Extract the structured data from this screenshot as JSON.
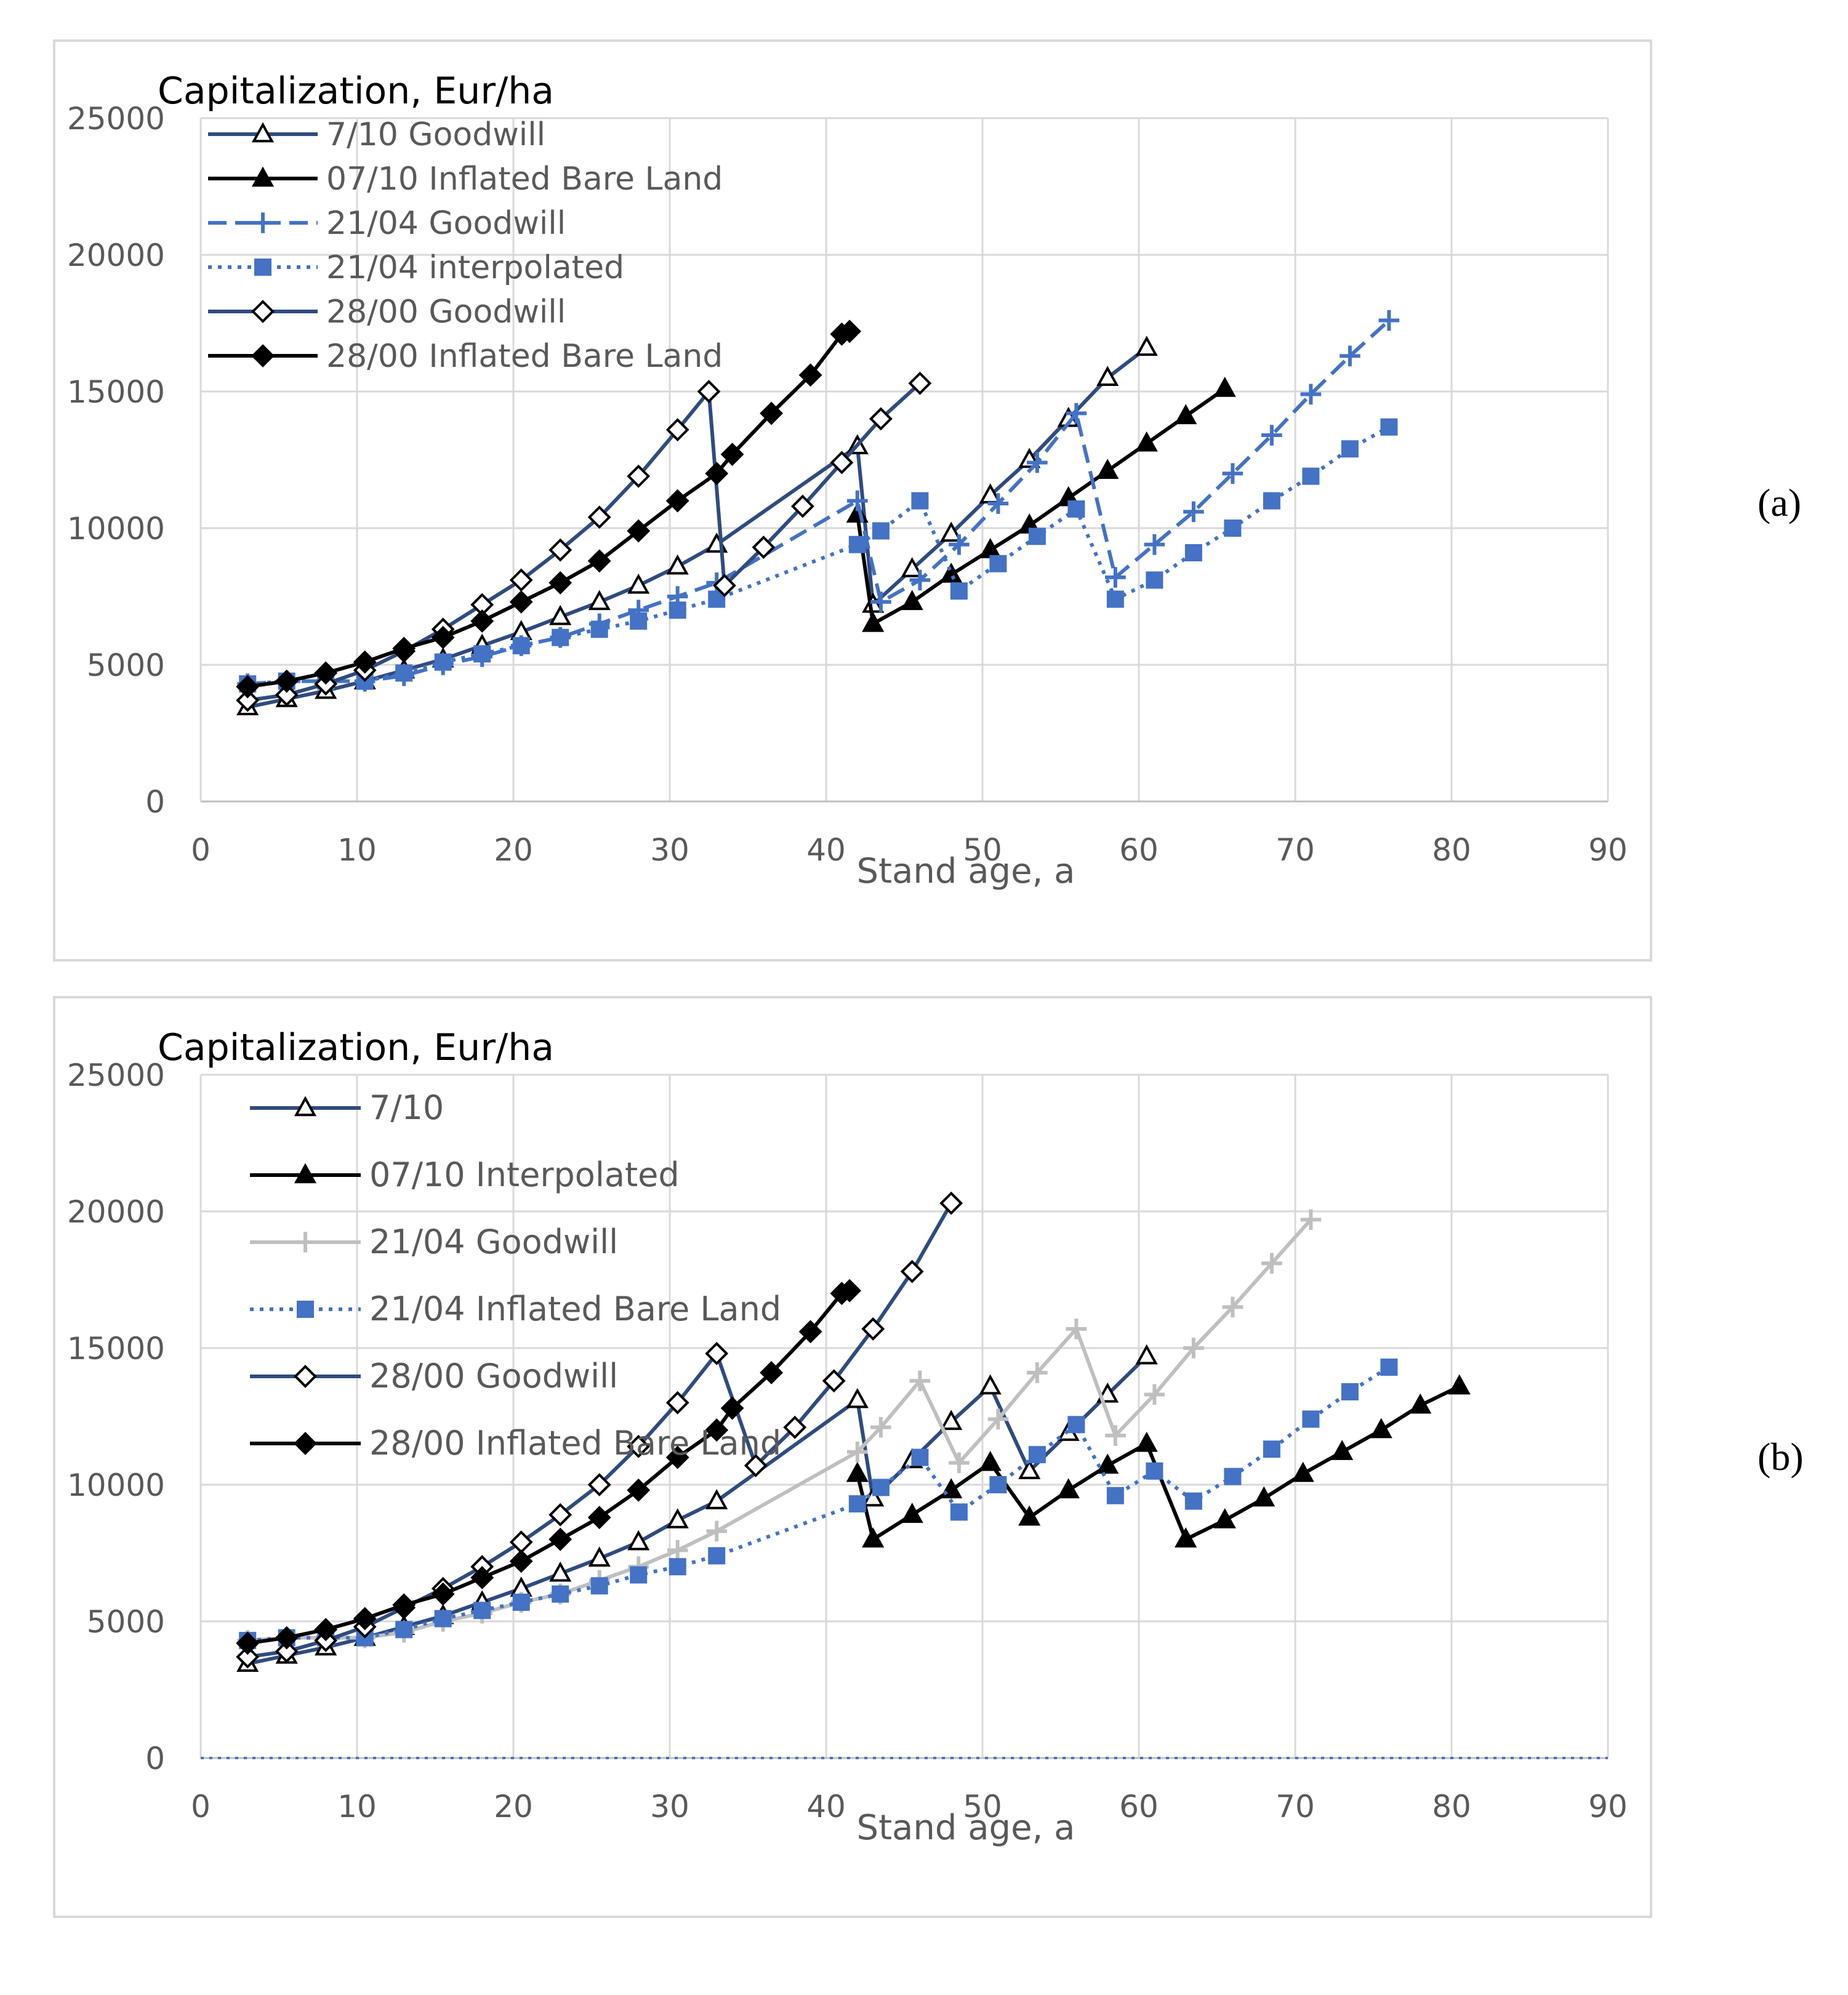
{
  "panel_labels": [
    "(a)",
    "(b)"
  ],
  "chart_data": [
    {
      "type": "line",
      "panel": "(a)",
      "title": "Capitalization, Eur/ha",
      "xlabel": "Stand age, a",
      "ylabel": "Capitalization, Eur/ha",
      "xlim": [
        0,
        90
      ],
      "ylim": [
        0,
        25000
      ],
      "xticks": [
        "0",
        "10",
        "20",
        "30",
        "40",
        "50",
        "60",
        "70",
        "80",
        "90"
      ],
      "yticks": [
        "0",
        "5000",
        "10000",
        "15000",
        "20000",
        "25000"
      ],
      "grid": true,
      "legend_position": "top-left",
      "series": [
        {
          "name": "7/10 Goodwill",
          "color": "#2f4b80",
          "dash": "solid",
          "marker": "triangle-open",
          "x": [
            3,
            5.5,
            8,
            10.5,
            13,
            15.5,
            18,
            20.5,
            23,
            25.5,
            28,
            30.5,
            33,
            42,
            43,
            45.5,
            48,
            50.5,
            53,
            55.5,
            58,
            60.5
          ],
          "y": [
            3450,
            3750,
            4050,
            4400,
            4800,
            5200,
            5700,
            6200,
            6750,
            7300,
            7900,
            8600,
            9400,
            13000,
            7200,
            8500,
            9800,
            11200,
            12500,
            14000,
            15500,
            16600
          ]
        },
        {
          "name": "07/10 Inflated Bare Land",
          "color": "#000000",
          "dash": "solid",
          "marker": "triangle",
          "x": [
            42,
            43,
            45.5,
            48,
            50.5,
            53,
            55.5,
            58,
            60.5,
            63,
            65.5
          ],
          "y": [
            10500,
            6500,
            7300,
            8300,
            9200,
            10100,
            11100,
            12100,
            13100,
            14100,
            15100
          ]
        },
        {
          "name": "21/04 Goodwill",
          "color": "#4472c4",
          "dash": "dash",
          "marker": "plus",
          "x": [
            3,
            5.5,
            8,
            10.5,
            13,
            15.5,
            18,
            20.5,
            23,
            25.5,
            28,
            30.5,
            33,
            42,
            43.5,
            46,
            48.5,
            51,
            53.5,
            56,
            58.5,
            61,
            63.5,
            66,
            68.5,
            71,
            73.5,
            76
          ],
          "y": [
            4300,
            4400,
            4400,
            4400,
            4600,
            5000,
            5300,
            5700,
            6000,
            6500,
            7000,
            7500,
            8000,
            11000,
            7300,
            8100,
            9400,
            10900,
            12400,
            14200,
            8200,
            9400,
            10600,
            12000,
            13400,
            14900,
            16300,
            17600
          ]
        },
        {
          "name": "21/04 interpolated",
          "color": "#4472c4",
          "dash": "dot",
          "marker": "square",
          "x": [
            3,
            5.5,
            8,
            10.5,
            13,
            15.5,
            18,
            20.5,
            23,
            25.5,
            28,
            30.5,
            33,
            42,
            43.5,
            46,
            48.5,
            51,
            53.5,
            56,
            58.5,
            61,
            63.5,
            66,
            68.5,
            71,
            73.5,
            76
          ],
          "y": [
            4300,
            4400,
            4400,
            4400,
            4700,
            5100,
            5400,
            5700,
            6000,
            6300,
            6600,
            7000,
            7400,
            9400,
            9900,
            11000,
            7700,
            8700,
            9700,
            10700,
            7400,
            8100,
            9100,
            10000,
            11000,
            11900,
            12900,
            13700
          ]
        },
        {
          "name": "28/00 Goodwill",
          "color": "#2f4b80",
          "dash": "solid",
          "marker": "diamond-open",
          "x": [
            3,
            5.5,
            8,
            10.5,
            13,
            15.5,
            18,
            20.5,
            23,
            25.5,
            28,
            30.5,
            32.5,
            33.5,
            36,
            38.5,
            41,
            43.5,
            46
          ],
          "y": [
            3700,
            3900,
            4300,
            4800,
            5500,
            6300,
            7200,
            8100,
            9200,
            10400,
            11900,
            13600,
            15000,
            7900,
            9300,
            10800,
            12400,
            14000,
            15300
          ]
        },
        {
          "name": "28/00 Inflated Bare Land",
          "color": "#000000",
          "dash": "solid",
          "marker": "diamond",
          "x": [
            3,
            5.5,
            8,
            10.5,
            13,
            15.5,
            18,
            20.5,
            23,
            25.5,
            28,
            30.5,
            33,
            34,
            36.5,
            39,
            41,
            41.5
          ],
          "y": [
            4200,
            4400,
            4700,
            5100,
            5600,
            6000,
            6600,
            7300,
            8000,
            8800,
            9900,
            11000,
            12000,
            12700,
            14200,
            15600,
            17100,
            17200
          ]
        }
      ]
    },
    {
      "type": "line",
      "panel": "(b)",
      "title": "Capitalization, Eur/ha",
      "xlabel": "Stand age, a",
      "ylabel": "Capitalization, Eur/ha",
      "xlim": [
        0,
        90
      ],
      "ylim": [
        0,
        25000
      ],
      "xticks": [
        "0",
        "10",
        "20",
        "30",
        "40",
        "50",
        "60",
        "70",
        "80",
        "90"
      ],
      "yticks": [
        "0",
        "5000",
        "10000",
        "15000",
        "20000",
        "25000"
      ],
      "grid": true,
      "legend_position": "top-left",
      "series": [
        {
          "name": "7/10",
          "color": "#2f4b80",
          "dash": "solid",
          "marker": "triangle-open",
          "x": [
            3,
            5.5,
            8,
            10.5,
            13,
            15.5,
            18,
            20.5,
            23,
            25.5,
            28,
            30.5,
            33,
            42,
            43,
            45.5,
            48,
            50.5,
            53,
            55.5,
            58,
            60.5
          ],
          "y": [
            3450,
            3750,
            4050,
            4400,
            4800,
            5200,
            5700,
            6200,
            6750,
            7300,
            7900,
            8700,
            9400,
            13100,
            9500,
            10900,
            12300,
            13600,
            10500,
            11900,
            13300,
            14700
          ]
        },
        {
          "name": "07/10 Interpolated",
          "color": "#000000",
          "dash": "solid",
          "marker": "triangle",
          "x": [
            42,
            43,
            45.5,
            48,
            50.5,
            53,
            55.5,
            58,
            60.5,
            63,
            65.5,
            68,
            70.5,
            73,
            75.5,
            78,
            80.5
          ],
          "y": [
            10400,
            8000,
            8900,
            9800,
            10800,
            8800,
            9800,
            10700,
            11500,
            8000,
            8700,
            9500,
            10400,
            11200,
            12000,
            12900,
            13600
          ]
        },
        {
          "name": "21/04 Goodwill",
          "color": "#bfbfbf",
          "dash": "solid",
          "marker": "plus",
          "x": [
            3,
            5.5,
            8,
            10.5,
            13,
            15.5,
            18,
            20.5,
            23,
            25.5,
            28,
            30.5,
            33,
            42,
            43.5,
            46,
            48.5,
            51,
            53.5,
            56,
            58.5,
            61,
            63.5,
            66,
            68.5,
            71
          ],
          "y": [
            4300,
            4400,
            4400,
            4400,
            4600,
            5000,
            5300,
            5700,
            6000,
            6500,
            7000,
            7600,
            8300,
            11200,
            12100,
            13800,
            10800,
            12400,
            14100,
            15700,
            11800,
            13300,
            15000,
            16500,
            18100,
            19700
          ]
        },
        {
          "name": "21/04 Inflated Bare Land",
          "color": "#4472c4",
          "dash": "dot",
          "marker": "square",
          "x": [
            3,
            5.5,
            8,
            10.5,
            13,
            15.5,
            18,
            20.5,
            23,
            25.5,
            28,
            30.5,
            33,
            42,
            43.5,
            46,
            48.5,
            51,
            53.5,
            56,
            58.5,
            61,
            63.5,
            66,
            68.5,
            71,
            73.5,
            76
          ],
          "y": [
            4300,
            4400,
            4400,
            4400,
            4700,
            5100,
            5400,
            5700,
            6000,
            6300,
            6700,
            7000,
            7400,
            9300,
            9900,
            11000,
            9000,
            10000,
            11100,
            12200,
            9600,
            10500,
            9400,
            10300,
            11300,
            12400,
            13400,
            14300
          ]
        },
        {
          "name": "28/00 Goodwill",
          "color": "#2f4b80",
          "dash": "solid",
          "marker": "diamond-open",
          "x": [
            3,
            5.5,
            8,
            10.5,
            13,
            15.5,
            18,
            20.5,
            23,
            25.5,
            28,
            30.5,
            33,
            35.5,
            38,
            40.5,
            43,
            45.5,
            48
          ],
          "y": [
            3700,
            3900,
            4300,
            4800,
            5500,
            6200,
            7000,
            7900,
            8900,
            10000,
            11400,
            13000,
            14800,
            10700,
            12100,
            13800,
            15700,
            17800,
            20300
          ]
        },
        {
          "name": "28/00 Inflated Bare Land",
          "color": "#000000",
          "dash": "solid",
          "marker": "diamond",
          "x": [
            3,
            5.5,
            8,
            10.5,
            13,
            15.5,
            18,
            20.5,
            23,
            25.5,
            28,
            30.5,
            33,
            34,
            36.5,
            39,
            41,
            41.5
          ],
          "y": [
            4200,
            4400,
            4700,
            5100,
            5600,
            6000,
            6600,
            7200,
            8000,
            8800,
            9800,
            11000,
            12000,
            12800,
            14100,
            15600,
            17000,
            17100
          ]
        }
      ]
    }
  ]
}
